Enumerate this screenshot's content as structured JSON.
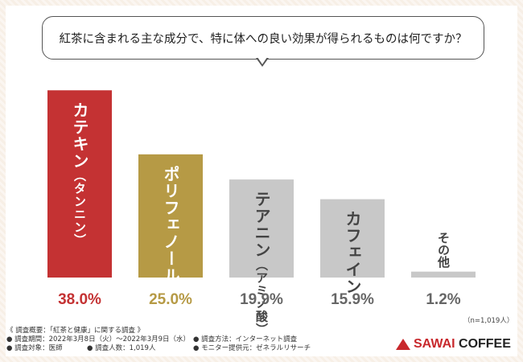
{
  "question": "紅茶に含まれる主な成分で、特に体への良い効果が得られるものは何ですか？",
  "chart_data": {
    "type": "bar",
    "categories": [
      "カテキン（タンニン）",
      "ポリフェノール",
      "テアニン（アミノ酸）",
      "カフェイン",
      "その他"
    ],
    "bar_labels": [
      {
        "main": "カテキン",
        "sub": "タンニン"
      },
      {
        "main": "ポリフェノール",
        "sub": ""
      },
      {
        "main": "テアニン",
        "sub": "アミノ酸"
      },
      {
        "main": "カフェイン",
        "sub": ""
      },
      {
        "main": "その他",
        "sub": ""
      }
    ],
    "values": [
      38.0,
      25.0,
      19.9,
      15.9,
      1.2
    ],
    "value_labels": [
      "38.0%",
      "25.0%",
      "19.9%",
      "15.9%",
      "1.2%"
    ],
    "colors": [
      "#c43233",
      "#b69a45",
      "#c8c8c8",
      "#c8c8c8",
      "#c8c8c8"
    ],
    "label_colors": [
      "#ffffff",
      "#ffffff",
      "#444444",
      "#444444",
      "#444444"
    ],
    "value_colors": [
      "#c43233",
      "#b69a45",
      "#666666",
      "#666666",
      "#666666"
    ],
    "ylim": [
      0,
      40
    ],
    "grid": false,
    "title": "",
    "xlabel": "",
    "ylabel": ""
  },
  "sample_note": "（n=1,019人）",
  "footer": {
    "heading": "《 調査概要：「紅茶と健康」に関する調査 》",
    "period": "● 調査期間：2022年3月8日（火）～2022年3月9日（水）",
    "method": "● 調査方法：インターネット調査",
    "target": "● 調査対象：医師",
    "count": "● 調査人数：1,019人",
    "provider": "● モニター提供元：ゼネラルリサーチ"
  },
  "logo": {
    "text_a": "SAWAI",
    "text_b": " COFFEE"
  }
}
